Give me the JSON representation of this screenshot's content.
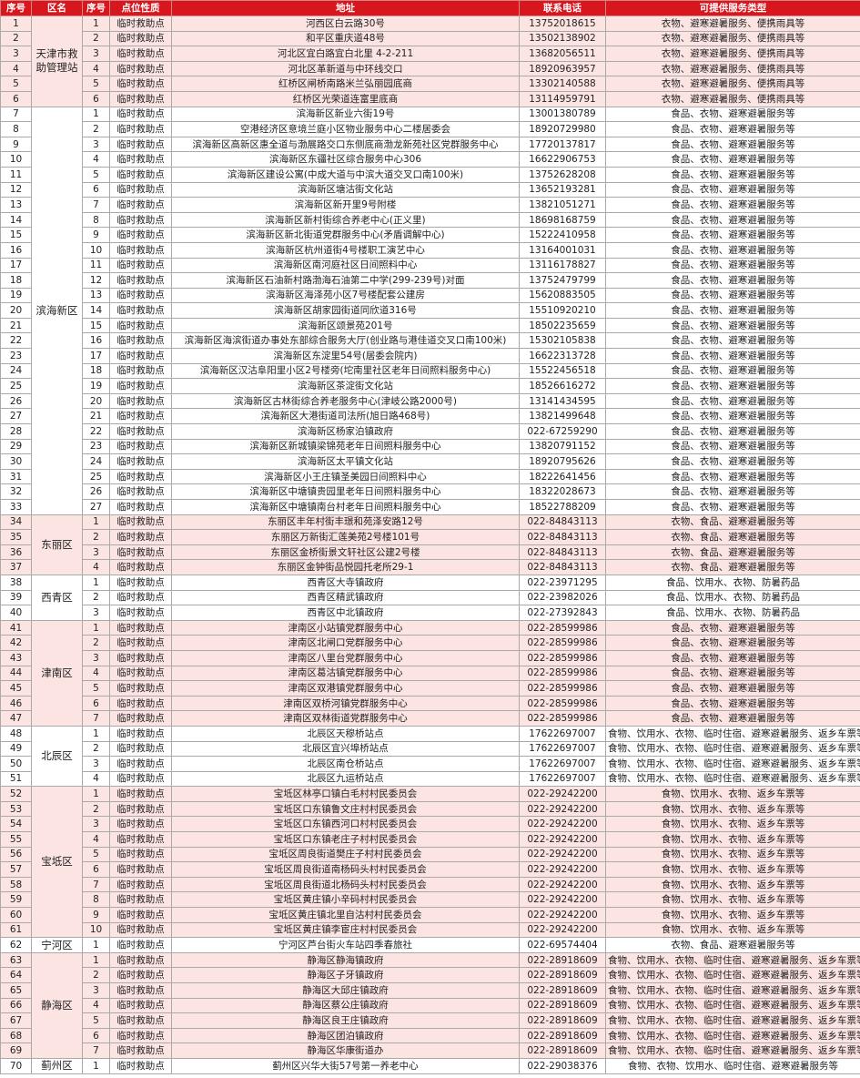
{
  "table": {
    "header": [
      "序号",
      "区名",
      "序号",
      "点位性质",
      "地址",
      "联系电话",
      "可提供服务类型"
    ],
    "groups": [
      {
        "district": "天津市救助管理站",
        "rows": [
          [
            "1",
            "1",
            "临时救助点",
            "河西区白云路30号",
            "13752018615",
            "衣物、避寒避暑服务、便携雨具等"
          ],
          [
            "2",
            "2",
            "临时救助点",
            "和平区重庆道48号",
            "13502138902",
            "衣物、避寒避暑服务、便携雨具等"
          ],
          [
            "3",
            "3",
            "临时救助点",
            "河北区宜白路宜白北里 4-2-211",
            "13682056511",
            "衣物、避寒避暑服务、便携雨具等"
          ],
          [
            "4",
            "4",
            "临时救助点",
            "河北区革新道与中环线交口",
            "18920963957",
            "衣物、避寒避暑服务、便携雨具等"
          ],
          [
            "5",
            "5",
            "临时救助点",
            "红桥区闸桥南路米兰弘丽园底商",
            "13302140588",
            "衣物、避寒避暑服务、便携雨具等"
          ],
          [
            "6",
            "6",
            "临时救助点",
            "红桥区光荣道连富里底商",
            "13114959791",
            "衣物、避寒避暑服务、便携雨具等"
          ]
        ]
      },
      {
        "district": "滨海新区",
        "rows": [
          [
            "7",
            "1",
            "临时救助点",
            "滨海新区新业六街19号",
            "13001380789",
            "食品、衣物、避寒避暑服务等"
          ],
          [
            "8",
            "2",
            "临时救助点",
            "空港经济区意境兰庭小区物业服务中心二楼居委会",
            "18920729980",
            "食品、衣物、避寒避暑服务等"
          ],
          [
            "9",
            "3",
            "临时救助点",
            "滨海新区高新区惠全道与渤展路交口东侧底商渤龙新苑社区党群服务中心",
            "17720137817",
            "食品、衣物、避寒避暑服务等"
          ],
          [
            "10",
            "4",
            "临时救助点",
            "滨海新区东疆社区综合服务中心306",
            "16622906753",
            "食品、衣物、避寒避暑服务等"
          ],
          [
            "11",
            "5",
            "临时救助点",
            "滨海新区建设公寓(中成大道与中滨大道交叉口南100米)",
            "13752628208",
            "食品、衣物、避寒避暑服务等"
          ],
          [
            "12",
            "6",
            "临时救助点",
            "滨海新区塘沽街文化站",
            "13652193281",
            "食品、衣物、避寒避暑服务等"
          ],
          [
            "13",
            "7",
            "临时救助点",
            "滨海新区新开里9号附楼",
            "13821051271",
            "食品、衣物、避寒避暑服务等"
          ],
          [
            "14",
            "8",
            "临时救助点",
            "滨海新区新村街综合养老中心(正义里)",
            "18698168759",
            "食品、衣物、避寒避暑服务等"
          ],
          [
            "15",
            "9",
            "临时救助点",
            "滨海新区新北街道党群服务中心(矛盾调解中心)",
            "15222410958",
            "食品、衣物、避寒避暑服务等"
          ],
          [
            "16",
            "10",
            "临时救助点",
            "滨海新区杭州道街4号楼职工演艺中心",
            "13164001031",
            "食品、衣物、避寒避暑服务等"
          ],
          [
            "17",
            "11",
            "临时救助点",
            "滨海新区南河庭社区日间照料中心",
            "13116178827",
            "食品、衣物、避寒避暑服务等"
          ],
          [
            "18",
            "12",
            "临时救助点",
            "滨海新区石油新村路渤海石油第二中学(299-239号)对面",
            "13752479799",
            "食品、衣物、避寒避暑服务等"
          ],
          [
            "19",
            "13",
            "临时救助点",
            "滨海新区海泽苑小区7号楼配套公建房",
            "15620883505",
            "食品、衣物、避寒避暑服务等"
          ],
          [
            "20",
            "14",
            "临时救助点",
            "滨海新区胡家园街道同欣道316号",
            "15510920210",
            "食品、衣物、避寒避暑服务等"
          ],
          [
            "21",
            "15",
            "临时救助点",
            "滨海新区颂景苑201号",
            "18502235659",
            "食品、衣物、避寒避暑服务等"
          ],
          [
            "22",
            "16",
            "临时救助点",
            "滨海新区海滨街道办事处东部综合服务大厅(创业路与港佳道交叉口南100米)",
            "15302105838",
            "食品、衣物、避寒避暑服务等"
          ],
          [
            "23",
            "17",
            "临时救助点",
            "滨海新区东淀里54号(居委会院内)",
            "16622313728",
            "食品、衣物、避寒避暑服务等"
          ],
          [
            "24",
            "18",
            "临时救助点",
            "滨海新区汉沽阜阳里小区2号楼旁(坨南里社区老年日间照料服务中心)",
            "15522456518",
            "食品、衣物、避寒避暑服务等"
          ],
          [
            "25",
            "19",
            "临时救助点",
            "滨海新区茶淀街文化站",
            "18526616272",
            "食品、衣物、避寒避暑服务等"
          ],
          [
            "26",
            "20",
            "临时救助点",
            "滨海新区古林街综合养老服务中心(津岐公路2000号)",
            "13141434595",
            "食品、衣物、避寒避暑服务等"
          ],
          [
            "27",
            "21",
            "临时救助点",
            "滨海新区大港街道司法所(旭日路468号)",
            "13821499648",
            "食品、衣物、避寒避暑服务等"
          ],
          [
            "28",
            "22",
            "临时救助点",
            "滨海新区杨家泊镇政府",
            "022-67259290",
            "食品、衣物、避寒避暑服务等"
          ],
          [
            "29",
            "23",
            "临时救助点",
            "滨海新区新城镇梁锦苑老年日间照料服务中心",
            "13820791152",
            "食品、衣物、避寒避暑服务等"
          ],
          [
            "30",
            "24",
            "临时救助点",
            "滨海新区太平镇文化站",
            "18920795626",
            "食品、衣物、避寒避暑服务等"
          ],
          [
            "31",
            "25",
            "临时救助点",
            "滨海新区小王庄镇圣美园日间照料中心",
            "18222641456",
            "食品、衣物、避寒避暑服务等"
          ],
          [
            "32",
            "26",
            "临时救助点",
            "滨海新区中塘镇贵园里老年日间照料服务中心",
            "18322028673",
            "食品、衣物、避寒避暑服务等"
          ],
          [
            "33",
            "27",
            "临时救助点",
            "滨海新区中塘镇南台村老年日间照料服务中心",
            "18522788209",
            "食品、衣物、避寒避暑服务等"
          ]
        ]
      },
      {
        "district": "东丽区",
        "rows": [
          [
            "34",
            "1",
            "临时救助点",
            "东丽区丰年村街丰璟和苑泽安路12号",
            "022-84843113",
            "衣物、食品、避寒避暑服务等"
          ],
          [
            "35",
            "2",
            "临时救助点",
            "东丽区万新街汇莲美苑2号楼101号",
            "022-84843113",
            "衣物、食品、避寒避暑服务等"
          ],
          [
            "36",
            "3",
            "临时救助点",
            "东丽区金桥街景文轩社区公建2号楼",
            "022-84843113",
            "衣物、食品、避寒避暑服务等"
          ],
          [
            "37",
            "4",
            "临时救助点",
            "东丽区金钟街品悦园托老所29-1",
            "022-84843113",
            "衣物、食品、避寒避暑服务等"
          ]
        ]
      },
      {
        "district": "西青区",
        "rows": [
          [
            "38",
            "1",
            "临时救助点",
            "西青区大寺镇政府",
            "022-23971295",
            "食品、饮用水、衣物、防暑药品"
          ],
          [
            "39",
            "2",
            "临时救助点",
            "西青区精武镇政府",
            "022-23982026",
            "食品、饮用水、衣物、防暑药品"
          ],
          [
            "40",
            "3",
            "临时救助点",
            "西青区中北镇政府",
            "022-27392843",
            "食品、饮用水、衣物、防暑药品"
          ]
        ]
      },
      {
        "district": "津南区",
        "rows": [
          [
            "41",
            "1",
            "临时救助点",
            "津南区小站镇党群服务中心",
            "022-28599986",
            "食品、衣物、避寒避暑服务等"
          ],
          [
            "42",
            "2",
            "临时救助点",
            "津南区北闸口党群服务中心",
            "022-28599986",
            "食品、衣物、避寒避暑服务等"
          ],
          [
            "43",
            "3",
            "临时救助点",
            "津南区八里台党群服务中心",
            "022-28599986",
            "食品、衣物、避寒避暑服务等"
          ],
          [
            "44",
            "4",
            "临时救助点",
            "津南区葛沽镇党群服务中心",
            "022-28599986",
            "食品、衣物、避寒避暑服务等"
          ],
          [
            "45",
            "5",
            "临时救助点",
            "津南区双港镇党群服务中心",
            "022-28599986",
            "食品、衣物、避寒避暑服务等"
          ],
          [
            "46",
            "6",
            "临时救助点",
            "津南区双桥河镇党群服务中心",
            "022-28599986",
            "食品、衣物、避寒避暑服务等"
          ],
          [
            "47",
            "7",
            "临时救助点",
            "津南区双林街道党群服务中心",
            "022-28599986",
            "食品、衣物、避寒避暑服务等"
          ]
        ]
      },
      {
        "district": "北辰区",
        "rows": [
          [
            "48",
            "1",
            "临时救助点",
            "北辰区天穆桥站点",
            "17622697007",
            "食物、饮用水、衣物、临时住宿、避寒避暑服务、返乡车票等"
          ],
          [
            "49",
            "2",
            "临时救助点",
            "北辰区宜兴埠桥站点",
            "17622697007",
            "食物、饮用水、衣物、临时住宿、避寒避暑服务、返乡车票等"
          ],
          [
            "50",
            "3",
            "临时救助点",
            "北辰区南仓桥站点",
            "17622697007",
            "食物、饮用水、衣物、临时住宿、避寒避暑服务、返乡车票等"
          ],
          [
            "51",
            "4",
            "临时救助点",
            "北辰区九运桥站点",
            "17622697007",
            "食物、饮用水、衣物、临时住宿、避寒避暑服务、返乡车票等"
          ]
        ]
      },
      {
        "district": "宝坻区",
        "rows": [
          [
            "52",
            "1",
            "临时救助点",
            "宝坻区林亭口镇白毛村村民委员会",
            "022-29242200",
            "食物、饮用水、衣物、返乡车票等"
          ],
          [
            "53",
            "2",
            "临时救助点",
            "宝坻区口东镇鲁文庄村村民委员会",
            "022-29242200",
            "食物、饮用水、衣物、返乡车票等"
          ],
          [
            "54",
            "3",
            "临时救助点",
            "宝坻区口东镇西河口村村民委员会",
            "022-29242200",
            "食物、饮用水、衣物、返乡车票等"
          ],
          [
            "55",
            "4",
            "临时救助点",
            "宝坻区口东镇老庄子村村民委员会",
            "022-29242200",
            "食物、饮用水、衣物、返乡车票等"
          ],
          [
            "56",
            "5",
            "临时救助点",
            "宝坻区周良街道樊庄子村村民委员会",
            "022-29242200",
            "食物、饮用水、衣物、返乡车票等"
          ],
          [
            "57",
            "6",
            "临时救助点",
            "宝坻区周良街道南杨码头村村民委员会",
            "022-29242200",
            "食物、饮用水、衣物、返乡车票等"
          ],
          [
            "58",
            "7",
            "临时救助点",
            "宝坻区周良街道北杨码头村村民委员会",
            "022-29242200",
            "食物、饮用水、衣物、返乡车票等"
          ],
          [
            "59",
            "8",
            "临时救助点",
            "宝坻区黄庄镇小辛码村村民委员会",
            "022-29242200",
            "食物、饮用水、衣物、返乡车票等"
          ],
          [
            "60",
            "9",
            "临时救助点",
            "宝坻区黄庄镇北里自沽村村民委员会",
            "022-29242200",
            "食物、饮用水、衣物、返乡车票等"
          ],
          [
            "61",
            "10",
            "临时救助点",
            "宝坻区黄庄镇李宦庄村村民委员会",
            "022-29242200",
            "食物、饮用水、衣物、返乡车票等"
          ]
        ]
      },
      {
        "district": "宁河区",
        "rows": [
          [
            "62",
            "1",
            "临时救助点",
            "宁河区芦台街火车站四季春旅社",
            "022-69574404",
            "衣物、食品、避寒避暑服务等"
          ]
        ]
      },
      {
        "district": "静海区",
        "rows": [
          [
            "63",
            "1",
            "临时救助点",
            "静海区静海镇政府",
            "022-28918609",
            "食物、饮用水、衣物、临时住宿、避寒避暑服务、返乡车票等"
          ],
          [
            "64",
            "2",
            "临时救助点",
            "静海区子牙镇政府",
            "022-28918609",
            "食物、饮用水、衣物、临时住宿、避寒避暑服务、返乡车票等"
          ],
          [
            "65",
            "3",
            "临时救助点",
            "静海区大邱庄镇政府",
            "022-28918609",
            "食物、饮用水、衣物、临时住宿、避寒避暑服务、返乡车票等"
          ],
          [
            "66",
            "4",
            "临时救助点",
            "静海区蔡公庄镇政府",
            "022-28918609",
            "食物、饮用水、衣物、临时住宿、避寒避暑服务、返乡车票等"
          ],
          [
            "67",
            "5",
            "临时救助点",
            "静海区良王庄镇政府",
            "022-28918609",
            "食物、饮用水、衣物、临时住宿、避寒避暑服务、返乡车票等"
          ],
          [
            "68",
            "6",
            "临时救助点",
            "静海区团泊镇政府",
            "022-28918609",
            "食物、饮用水、衣物、临时住宿、避寒避暑服务、返乡车票等"
          ],
          [
            "69",
            "7",
            "临时救助点",
            "静海区华康街道办",
            "022-28918609",
            "食物、饮用水、衣物、临时住宿、避寒避暑服务、返乡车票等"
          ]
        ]
      },
      {
        "district": "蓟州区",
        "rows": [
          [
            "70",
            "1",
            "临时救助点",
            "蓟州区兴华大街57号第一养老中心",
            "022-29038376",
            "食物、衣物、饮用水、临时住宿、避寒避暑服务等"
          ]
        ]
      }
    ]
  }
}
